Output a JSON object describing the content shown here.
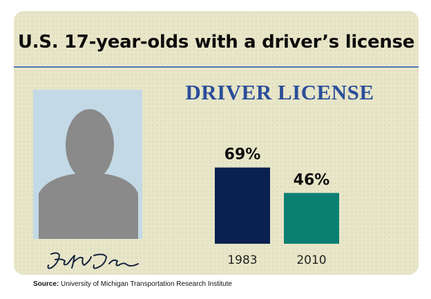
{
  "title": "U.S. 17-year-olds with a driver’s license",
  "card_heading": "DRIVER LICENSE",
  "source_label": "Source:",
  "source_text": "University of Michigan Transportation Research Institute",
  "colors": {
    "card": "#e8e6c8",
    "rule": "#4b79b5",
    "heading": "#2b4e9a",
    "photo_bg": "#c3d9e6",
    "silhouette": "#8a8a8a"
  },
  "chart_data": {
    "type": "bar",
    "title": "U.S. 17-year-olds with a driver’s license",
    "categories": [
      "1983",
      "2010"
    ],
    "values": [
      69,
      46
    ],
    "value_labels": [
      "69%",
      "46%"
    ],
    "colors": [
      "#0a2050",
      "#0a7f72"
    ],
    "ylim": [
      0,
      100
    ],
    "grid": false,
    "legend": "none"
  }
}
